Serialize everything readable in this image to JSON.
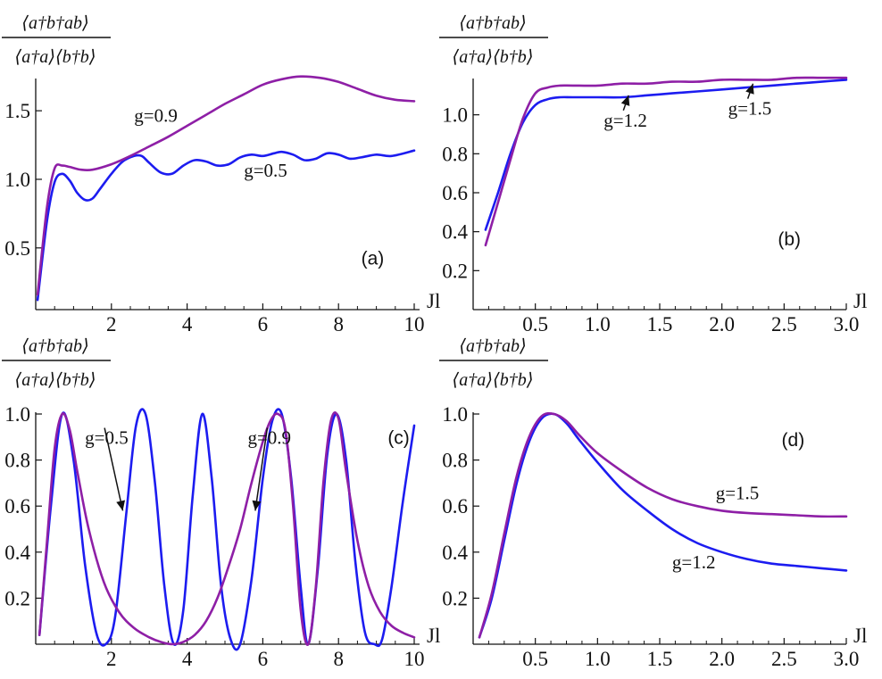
{
  "figure": {
    "ylabel_numerator": "⟨a†b†ab⟩",
    "ylabel_denominator": "⟨a†a⟩⟨b†b⟩",
    "colors": {
      "g_low": "#1c1cf0",
      "g_high": "#8e1fa6"
    }
  },
  "chart_data": [
    {
      "type": "line",
      "panel": "(a)",
      "xlabel": "Jl",
      "ylabel": "⟨a†b†ab⟩ / ⟨a†a⟩⟨b†b⟩",
      "xlim": [
        0,
        10
      ],
      "ylim": [
        0.05,
        1.8
      ],
      "xticks": [
        "2",
        "4",
        "6",
        "8",
        "10"
      ],
      "xtick_values": [
        2,
        4,
        6,
        8,
        10
      ],
      "yticks": [
        "0.5",
        "1.0",
        "1.5"
      ],
      "ytick_values": [
        0.5,
        1.0,
        1.5
      ],
      "series": [
        {
          "name": "g=0.5",
          "color": "#1c1cf0",
          "x": [
            0.05,
            0.3,
            0.5,
            0.7,
            0.9,
            1.1,
            1.3,
            1.5,
            1.7,
            2.0,
            2.3,
            2.6,
            2.8,
            3.0,
            3.3,
            3.6,
            3.9,
            4.2,
            4.5,
            4.8,
            5.1,
            5.4,
            5.7,
            6.0,
            6.3,
            6.5,
            6.8,
            7.1,
            7.4,
            7.7,
            8.0,
            8.3,
            8.6,
            9.0,
            9.4,
            10.0
          ],
          "y": [
            0.12,
            0.7,
            0.98,
            1.04,
            0.99,
            0.9,
            0.85,
            0.86,
            0.93,
            1.04,
            1.13,
            1.17,
            1.17,
            1.12,
            1.05,
            1.04,
            1.1,
            1.14,
            1.13,
            1.1,
            1.11,
            1.16,
            1.18,
            1.17,
            1.19,
            1.2,
            1.18,
            1.14,
            1.15,
            1.19,
            1.18,
            1.15,
            1.16,
            1.18,
            1.17,
            1.21
          ]
        },
        {
          "name": "g=0.9",
          "color": "#8e1fa6",
          "x": [
            0.05,
            0.3,
            0.5,
            0.7,
            0.9,
            1.2,
            1.5,
            2.0,
            2.5,
            3.0,
            3.5,
            4.0,
            4.5,
            5.0,
            5.5,
            6.0,
            6.5,
            7.0,
            7.5,
            8.0,
            8.5,
            9.0,
            9.5,
            10.0
          ],
          "y": [
            0.16,
            0.8,
            1.08,
            1.1,
            1.09,
            1.07,
            1.07,
            1.11,
            1.17,
            1.24,
            1.31,
            1.39,
            1.47,
            1.55,
            1.62,
            1.69,
            1.73,
            1.75,
            1.74,
            1.71,
            1.66,
            1.61,
            1.58,
            1.57
          ]
        }
      ],
      "annotations": [
        {
          "text": "g=0.9",
          "x": 2.6,
          "y": 1.42
        },
        {
          "text": "g=0.5",
          "x": 5.5,
          "y": 1.02
        },
        {
          "text": "(a)",
          "x": 8.6,
          "y": 0.38
        }
      ]
    },
    {
      "type": "line",
      "panel": "(b)",
      "xlabel": "Jl",
      "ylabel": "⟨a†b†ab⟩ / ⟨a†a⟩⟨b†b⟩",
      "xlim": [
        0,
        3.0
      ],
      "ylim": [
        0,
        1.2
      ],
      "xticks": [
        "0.5",
        "1.0",
        "1.5",
        "2.0",
        "2.5",
        "3.0"
      ],
      "xtick_values": [
        0.5,
        1.0,
        1.5,
        2.0,
        2.5,
        3.0
      ],
      "yticks": [
        "0.2",
        "0.4",
        "0.6",
        "0.8",
        "1.0"
      ],
      "ytick_values": [
        0.2,
        0.4,
        0.6,
        0.8,
        1.0
      ],
      "series": [
        {
          "name": "g=1.2",
          "color": "#1c1cf0",
          "x": [
            0.1,
            0.2,
            0.3,
            0.4,
            0.5,
            0.6,
            0.7,
            0.8,
            1.0,
            1.2,
            1.4,
            1.6,
            1.8,
            2.0,
            2.2,
            2.4,
            2.6,
            2.8,
            3.0
          ],
          "y": [
            0.41,
            0.6,
            0.8,
            0.96,
            1.05,
            1.08,
            1.09,
            1.09,
            1.09,
            1.09,
            1.1,
            1.11,
            1.12,
            1.13,
            1.14,
            1.15,
            1.16,
            1.17,
            1.18
          ]
        },
        {
          "name": "g=1.5",
          "color": "#8e1fa6",
          "x": [
            0.1,
            0.2,
            0.3,
            0.4,
            0.5,
            0.6,
            0.7,
            0.8,
            1.0,
            1.2,
            1.4,
            1.6,
            1.8,
            2.0,
            2.2,
            2.4,
            2.6,
            2.8,
            3.0
          ],
          "y": [
            0.33,
            0.55,
            0.77,
            0.98,
            1.11,
            1.14,
            1.15,
            1.15,
            1.15,
            1.16,
            1.16,
            1.17,
            1.17,
            1.18,
            1.18,
            1.18,
            1.19,
            1.19,
            1.19
          ]
        }
      ],
      "annotations": [
        {
          "text": "g=1.2",
          "x": 1.05,
          "y": 0.94,
          "arrow_to": [
            1.25,
            1.1
          ]
        },
        {
          "text": "g=1.5",
          "x": 2.05,
          "y": 1.0,
          "arrow_to": [
            2.25,
            1.16
          ]
        },
        {
          "text": "(b)",
          "x": 2.45,
          "y": 0.33
        }
      ]
    },
    {
      "type": "line",
      "panel": "(c)",
      "xlabel": "Jl",
      "ylabel": "⟨a†b†ab⟩ / ⟨a†a⟩⟨b†b⟩",
      "xlim": [
        0,
        10
      ],
      "ylim": [
        0,
        1.0
      ],
      "xticks": [
        "2",
        "4",
        "6",
        "8",
        "10"
      ],
      "xtick_values": [
        2,
        4,
        6,
        8,
        10
      ],
      "yticks": [
        "0.2",
        "0.4",
        "0.6",
        "0.8",
        "1.0"
      ],
      "ytick_values": [
        0.2,
        0.4,
        0.6,
        0.8,
        1.0
      ],
      "series": [
        {
          "name": "g=0.5",
          "color": "#1c1cf0",
          "x": [
            0.1,
            0.4,
            0.7,
            1.0,
            1.3,
            1.6,
            1.85,
            2.1,
            2.4,
            2.65,
            2.9,
            3.15,
            3.4,
            3.65,
            3.9,
            4.15,
            4.4,
            4.65,
            4.9,
            5.15,
            5.4,
            5.7,
            6.0,
            6.25,
            6.5,
            6.75,
            7.0,
            7.2,
            7.45,
            7.7,
            7.95,
            8.2,
            8.45,
            8.7,
            8.95,
            9.15,
            9.4,
            9.7,
            10.0
          ],
          "y": [
            0.04,
            0.6,
            1.0,
            0.8,
            0.35,
            0.05,
            0.0,
            0.12,
            0.58,
            0.95,
            1.0,
            0.7,
            0.25,
            0.0,
            0.15,
            0.65,
            1.0,
            0.72,
            0.25,
            0.02,
            0.0,
            0.28,
            0.72,
            0.97,
            1.0,
            0.72,
            0.25,
            0.0,
            0.32,
            0.82,
            1.0,
            0.8,
            0.35,
            0.05,
            0.0,
            0.02,
            0.25,
            0.62,
            0.95
          ]
        },
        {
          "name": "g=0.9",
          "color": "#8e1fa6",
          "x": [
            0.1,
            0.3,
            0.5,
            0.7,
            0.9,
            1.1,
            1.4,
            1.8,
            2.2,
            2.6,
            3.0,
            3.3,
            3.6,
            3.9,
            4.2,
            4.5,
            4.8,
            5.1,
            5.4,
            5.7,
            6.0,
            6.2,
            6.4,
            6.6,
            6.8,
            7.0,
            7.2,
            7.4,
            7.6,
            7.8,
            8.0,
            8.2,
            8.5,
            8.8,
            9.1,
            9.4,
            9.7,
            10.0
          ],
          "y": [
            0.04,
            0.45,
            0.85,
            1.0,
            0.93,
            0.75,
            0.5,
            0.27,
            0.14,
            0.07,
            0.03,
            0.01,
            0.0,
            0.01,
            0.04,
            0.1,
            0.2,
            0.34,
            0.5,
            0.7,
            0.88,
            0.97,
            1.0,
            0.93,
            0.6,
            0.15,
            0.0,
            0.25,
            0.7,
            0.97,
            0.98,
            0.75,
            0.45,
            0.25,
            0.14,
            0.08,
            0.05,
            0.03
          ]
        }
      ],
      "annotations": [
        {
          "text": "g=0.5",
          "x": 1.3,
          "y": 0.87,
          "arrow_to": [
            2.3,
            0.58
          ]
        },
        {
          "text": "g=0.9",
          "x": 5.6,
          "y": 0.87,
          "arrow_to": [
            5.8,
            0.58
          ]
        },
        {
          "text": "(c)",
          "x": 9.3,
          "y": 0.87
        }
      ]
    },
    {
      "type": "line",
      "panel": "(d)",
      "xlabel": "Jl",
      "ylabel": "⟨a†b†ab⟩ / ⟨a†a⟩⟨b†b⟩",
      "xlim": [
        0,
        3.0
      ],
      "ylim": [
        0,
        1.0
      ],
      "xticks": [
        "0.5",
        "1.0",
        "1.5",
        "2.0",
        "2.5",
        "3.0"
      ],
      "xtick_values": [
        0.5,
        1.0,
        1.5,
        2.0,
        2.5,
        3.0
      ],
      "yticks": [
        "0.2",
        "0.4",
        "0.6",
        "0.8",
        "1.0"
      ],
      "ytick_values": [
        0.2,
        0.4,
        0.6,
        0.8,
        1.0
      ],
      "series": [
        {
          "name": "g=1.2",
          "color": "#1c1cf0",
          "x": [
            0.05,
            0.15,
            0.25,
            0.35,
            0.45,
            0.55,
            0.65,
            0.75,
            0.85,
            1.0,
            1.2,
            1.4,
            1.6,
            1.8,
            2.0,
            2.2,
            2.4,
            2.6,
            2.8,
            3.0
          ],
          "y": [
            0.03,
            0.2,
            0.45,
            0.7,
            0.88,
            0.98,
            1.0,
            0.96,
            0.89,
            0.79,
            0.67,
            0.58,
            0.5,
            0.44,
            0.4,
            0.37,
            0.35,
            0.34,
            0.33,
            0.32
          ]
        },
        {
          "name": "g=1.5",
          "color": "#8e1fa6",
          "x": [
            0.05,
            0.15,
            0.25,
            0.35,
            0.45,
            0.55,
            0.65,
            0.75,
            0.85,
            1.0,
            1.2,
            1.4,
            1.6,
            1.8,
            2.0,
            2.2,
            2.4,
            2.6,
            2.8,
            3.0
          ],
          "y": [
            0.03,
            0.22,
            0.48,
            0.73,
            0.9,
            0.99,
            1.0,
            0.97,
            0.91,
            0.83,
            0.75,
            0.68,
            0.63,
            0.6,
            0.58,
            0.57,
            0.565,
            0.56,
            0.555,
            0.555
          ]
        }
      ],
      "annotations": [
        {
          "text": "g=1.5",
          "x": 1.95,
          "y": 0.63
        },
        {
          "text": "g=1.2",
          "x": 1.6,
          "y": 0.33
        },
        {
          "text": "(d)",
          "x": 2.48,
          "y": 0.86
        }
      ]
    }
  ]
}
